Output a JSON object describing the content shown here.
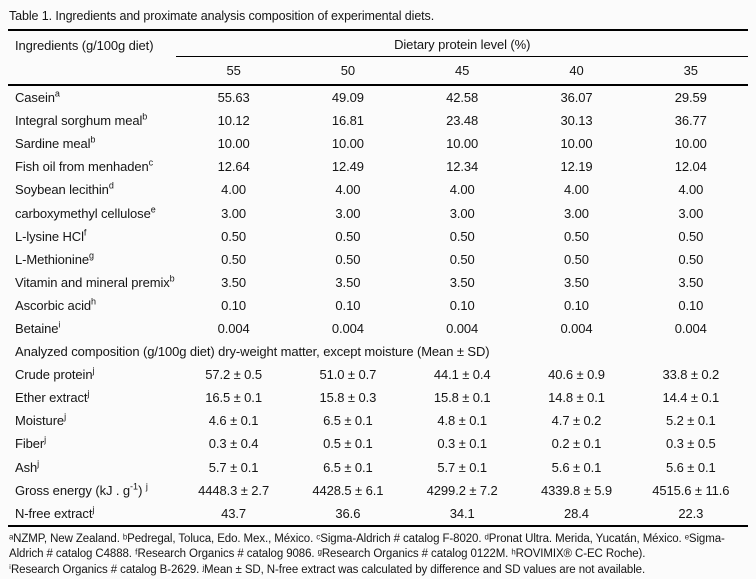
{
  "title": "Table 1. Ingredients and proximate analysis composition of experimental diets.",
  "table": {
    "col1_header": "Ingredients (g/100g diet)",
    "span_header": "Dietary protein level (%)",
    "protein_levels": [
      "55",
      "50",
      "45",
      "40",
      "35"
    ],
    "ingredient_rows": [
      {
        "pre": "Casein",
        "sup1": "a",
        "values": [
          "55.63",
          "49.09",
          "42.58",
          "36.07",
          "29.59"
        ]
      },
      {
        "pre": "Integral sorghum meal",
        "sup1": "b",
        "values": [
          "10.12",
          "16.81",
          "23.48",
          "30.13",
          "36.77"
        ]
      },
      {
        "pre": "Sardine meal",
        "sup1": "b",
        "values": [
          "10.00",
          "10.00",
          "10.00",
          "10.00",
          "10.00"
        ]
      },
      {
        "pre": "Fish oil from menhaden",
        "sup1": "c",
        "values": [
          "12.64",
          "12.49",
          "12.34",
          "12.19",
          "12.04"
        ]
      },
      {
        "pre": "Soybean lecithin",
        "sup1": "d",
        "values": [
          "4.00",
          "4.00",
          "4.00",
          "4.00",
          "4.00"
        ]
      },
      {
        "pre": "carboxymethyl cellulose",
        "sup1": "e",
        "values": [
          "3.00",
          "3.00",
          "3.00",
          "3.00",
          "3.00"
        ]
      },
      {
        "pre": "L-lysine HCl",
        "sup1": "f",
        "values": [
          "0.50",
          "0.50",
          "0.50",
          "0.50",
          "0.50"
        ]
      },
      {
        "pre": "L-Methionine",
        "sup1": "g",
        "values": [
          "0.50",
          "0.50",
          "0.50",
          "0.50",
          "0.50"
        ]
      },
      {
        "pre": "Vitamin and mineral premix",
        "sup1": "b",
        "values": [
          "3.50",
          "3.50",
          "3.50",
          "3.50",
          "3.50"
        ]
      },
      {
        "pre": "Ascorbic acid",
        "sup1": "h",
        "values": [
          "0.10",
          "0.10",
          "0.10",
          "0.10",
          "0.10"
        ]
      },
      {
        "pre": "Betaine",
        "sup1": "i",
        "values": [
          "0.004",
          "0.004",
          "0.004",
          "0.004",
          "0.004"
        ]
      }
    ],
    "section_header": "Analyzed composition (g/100g diet) dry-weight matter, except moisture (Mean ± SD)",
    "analysis_rows": [
      {
        "pre": "Crude protein",
        "sup1": "j",
        "values": [
          "57.2 ± 0.5",
          "51.0 ± 0.7",
          "44.1 ± 0.4",
          "40.6 ± 0.9",
          "33.8 ± 0.2"
        ]
      },
      {
        "pre": "Ether extract",
        "sup1": "j",
        "values": [
          "16.5 ± 0.1",
          "15.8 ± 0.3",
          "15.8 ± 0.1",
          "14.8 ± 0.1",
          "14.4 ± 0.1"
        ]
      },
      {
        "pre": "Moisture",
        "sup1": "j",
        "values": [
          "4.6 ± 0.1",
          "6.5 ± 0.1",
          "4.8 ± 0.1",
          "4.7 ± 0.2",
          "5.2 ± 0.1"
        ]
      },
      {
        "pre": "Fiber",
        "sup1": "j",
        "values": [
          "0.3 ± 0.4",
          "0.5 ± 0.1",
          "0.3 ± 0.1",
          "0.2 ± 0.1",
          "0.3 ± 0.5"
        ]
      },
      {
        "pre": "Ash",
        "sup1": "j",
        "values": [
          "5.7 ± 0.1",
          "6.5 ± 0.1",
          "5.7 ± 0.1",
          "5.6 ± 0.1",
          "5.6 ± 0.1"
        ]
      },
      {
        "pre": "Gross energy (kJ . g",
        "sup1": "-1",
        "mid": ") ",
        "sup2": "j",
        "values": [
          "4448.3 ± 2.7",
          "4428.5 ± 6.1",
          "4299.2 ± 7.2",
          "4339.8 ± 5.9",
          "4515.6 ± 11.6"
        ]
      },
      {
        "pre": "N-free extract",
        "sup1": "j",
        "values": [
          "43.7",
          "36.6",
          "34.1",
          "28.4",
          "22.3"
        ]
      }
    ]
  },
  "footnotes": {
    "para1": "ᵃNZMP, New Zealand. ᵇPedregal, Toluca, Edo. Mex., México. ᶜSigma-Aldrich # catalog F-8020. ᵈPronat Ultra. Merida, Yucatán, México. ᵉSigma-Aldrich # catalog C4888. ᶠResearch Organics # catalog 9086. ᵍResearch Organics # catalog 0122M. ʰROVIMIX® C-EC Roche).",
    "para2": "ⁱResearch Organics # catalog B-2629. ʲMean ± SD, N-free extract was calculated by difference and SD values are not available."
  }
}
